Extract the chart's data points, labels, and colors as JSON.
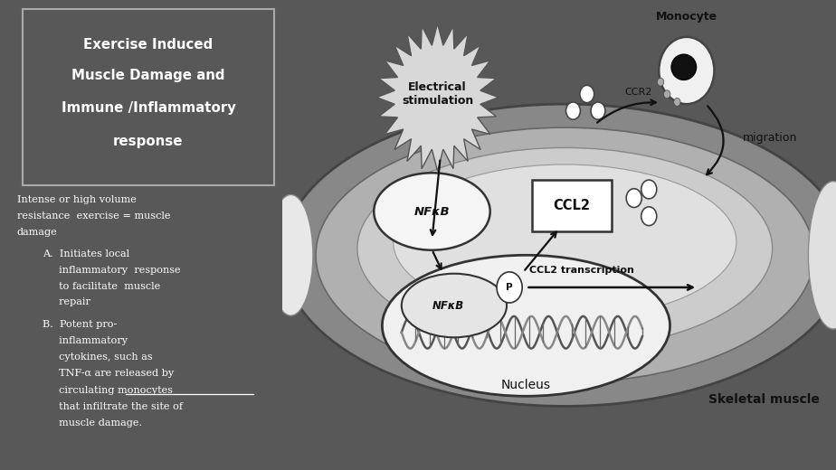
{
  "bg_left": "#585858",
  "bg_right": "#ffffff",
  "title_box_edge": "#bbbbbb",
  "title_text_lines": [
    "Exercise Induced",
    "Muscle Damage and",
    "Immune /Inflammatory",
    "response"
  ],
  "title_color": "#ffffff",
  "body_text_color": "#ffffff",
  "monocyte_label": "Monocyte",
  "ccr2_label": "CCR2",
  "migration_label": "migration",
  "electrical_label": "Electrical\nstimulation",
  "nfkb_label": "NFκB",
  "ccl2_label": "CCL2",
  "ccl2_transcription_label": "CCL2 transcription",
  "nucleus_label": "Nucleus",
  "skeletal_label": "Skeletal muscle",
  "p_label": "P"
}
